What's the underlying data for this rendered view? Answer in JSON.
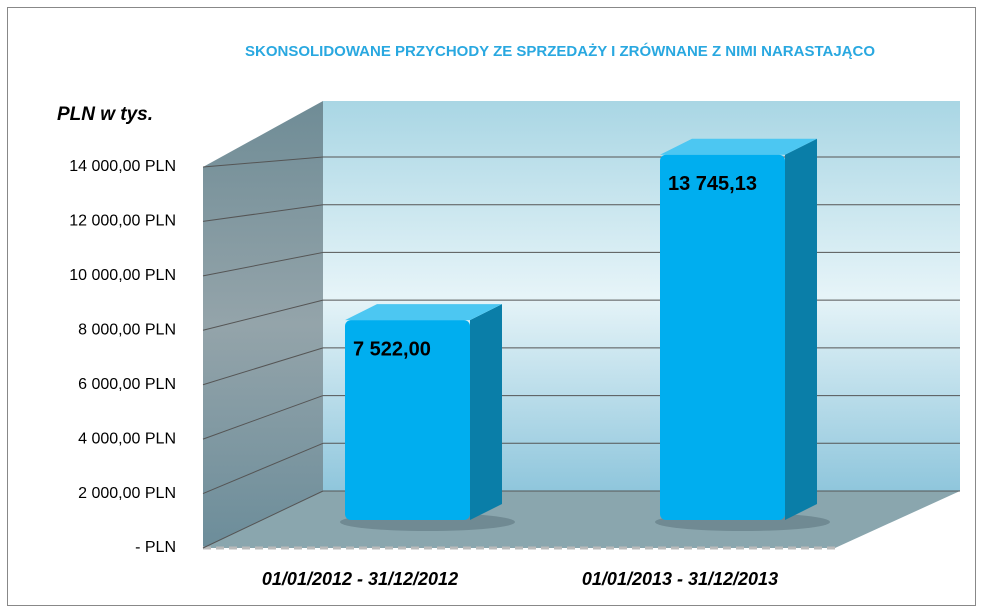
{
  "chart_data": {
    "type": "bar",
    "title": "SKONSOLIDOWANE PRZYCHODY ZE SPRZEDAŻY I ZRÓWNANE Z NIMI NARASTAJĄCO",
    "y_label": "PLN w tys.",
    "categories": [
      "01/01/2012 - 31/12/2012",
      "01/01/2013 - 31/12/2013"
    ],
    "values": [
      7522,
      13745.13
    ],
    "value_labels": [
      "7 522,00",
      "13 745,13"
    ],
    "color": "#00aeef",
    "ylim": [
      0,
      14000
    ],
    "yticks": [
      {
        "value": 0,
        "label": "-   PLN"
      },
      {
        "value": 2000,
        "label": "2 000,00 PLN"
      },
      {
        "value": 4000,
        "label": "4 000,00 PLN"
      },
      {
        "value": 6000,
        "label": "6 000,00 PLN"
      },
      {
        "value": 8000,
        "label": "8 000,00 PLN"
      },
      {
        "value": 10000,
        "label": "10 000,00 PLN"
      },
      {
        "value": 12000,
        "label": "12 000,00 PLN"
      },
      {
        "value": 14000,
        "label": "14 000,00 PLN"
      }
    ],
    "grid": true
  }
}
